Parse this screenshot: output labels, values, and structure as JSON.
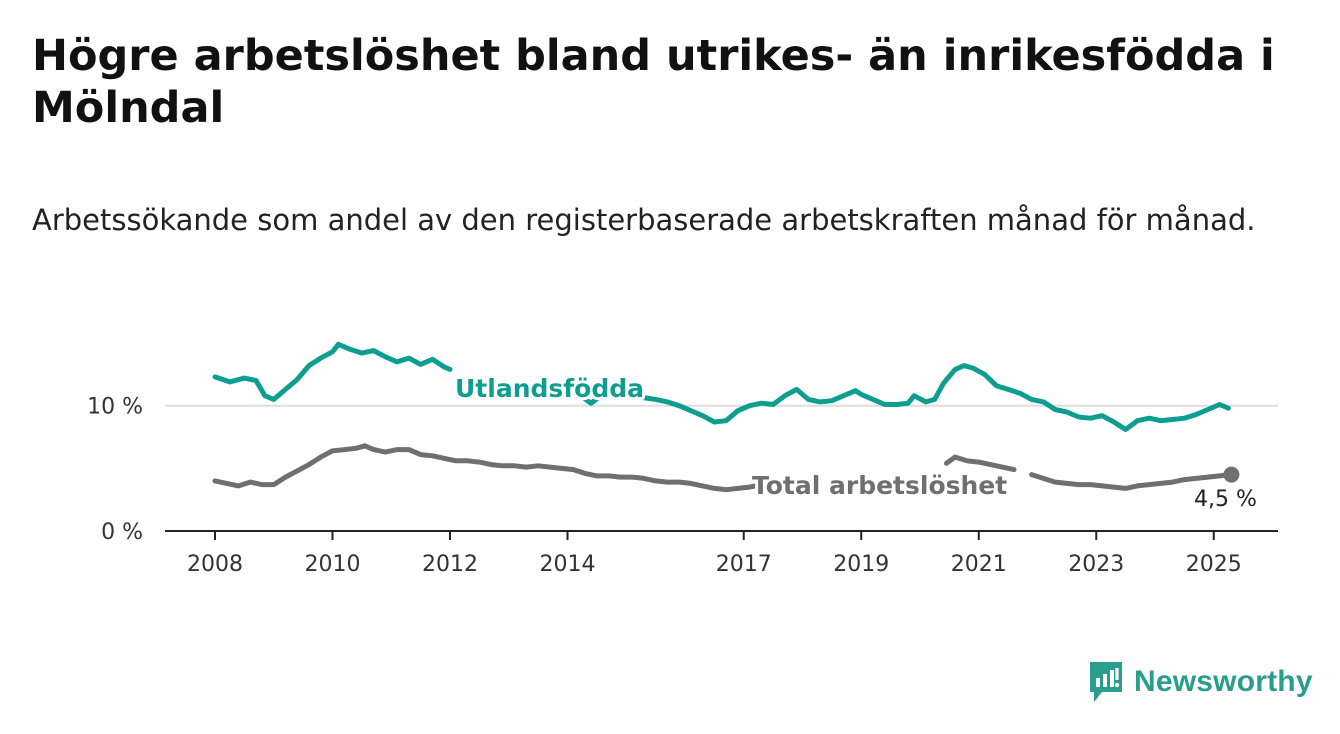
{
  "header": {
    "title": "Högre arbetslöshet bland utrikes- än inrikesfödda i Mölndal",
    "subtitle": "Arbetssökande som andel av den registerbaserade arbetskraften månad för månad."
  },
  "brand": {
    "name": "Newsworthy",
    "icon": "newsworthy-logo-icon",
    "color": "#2a9d8f"
  },
  "chart_data": {
    "type": "line",
    "x_unit": "year",
    "xlim": [
      2007.2,
      2026.1
    ],
    "ylim": [
      0,
      17
    ],
    "y_ticks": [
      {
        "value": 0,
        "label": "0 %"
      },
      {
        "value": 10,
        "label": "10 %"
      }
    ],
    "x_ticks": [
      {
        "value": 2008,
        "label": "2008"
      },
      {
        "value": 2010,
        "label": "2010"
      },
      {
        "value": 2012,
        "label": "2012"
      },
      {
        "value": 2014,
        "label": "2014"
      },
      {
        "value": 2017,
        "label": "2017"
      },
      {
        "value": 2019,
        "label": "2019"
      },
      {
        "value": 2021,
        "label": "2021"
      },
      {
        "value": 2023,
        "label": "2023"
      },
      {
        "value": 2025,
        "label": "2025"
      }
    ],
    "grid": "horizontal at 10 %",
    "series": [
      {
        "name": "Utlandsfödda",
        "color": "#0d9e91",
        "points": [
          [
            2008.0,
            12.3
          ],
          [
            2008.25,
            11.9
          ],
          [
            2008.5,
            12.2
          ],
          [
            2008.7,
            12.0
          ],
          [
            2008.85,
            10.8
          ],
          [
            2009.0,
            10.5
          ],
          [
            2009.2,
            11.3
          ],
          [
            2009.4,
            12.1
          ],
          [
            2009.6,
            13.2
          ],
          [
            2009.8,
            13.8
          ],
          [
            2010.0,
            14.3
          ],
          [
            2010.1,
            14.9
          ],
          [
            2010.3,
            14.5
          ],
          [
            2010.5,
            14.2
          ],
          [
            2010.7,
            14.4
          ],
          [
            2010.9,
            13.9
          ],
          [
            2011.1,
            13.5
          ],
          [
            2011.3,
            13.8
          ],
          [
            2011.5,
            13.3
          ],
          [
            2011.7,
            13.7
          ],
          [
            2011.9,
            13.1
          ],
          [
            2012.0,
            12.9
          ],
          [
            null,
            null
          ],
          [
            2014.25,
            10.7
          ],
          [
            2014.4,
            10.2
          ],
          [
            2014.55,
            10.7
          ],
          [
            null,
            null
          ],
          [
            2015.2,
            10.7
          ],
          [
            2015.5,
            10.5
          ],
          [
            2015.7,
            10.3
          ],
          [
            2015.9,
            10.0
          ],
          [
            2016.1,
            9.6
          ],
          [
            2016.3,
            9.2
          ],
          [
            2016.5,
            8.7
          ],
          [
            2016.7,
            8.8
          ],
          [
            2016.9,
            9.6
          ],
          [
            2017.1,
            10.0
          ],
          [
            2017.3,
            10.2
          ],
          [
            2017.5,
            10.1
          ],
          [
            2017.7,
            10.8
          ],
          [
            2017.9,
            11.3
          ],
          [
            2018.1,
            10.5
          ],
          [
            2018.3,
            10.3
          ],
          [
            2018.5,
            10.4
          ],
          [
            2018.7,
            10.8
          ],
          [
            2018.9,
            11.2
          ],
          [
            2019.0,
            10.9
          ],
          [
            2019.2,
            10.5
          ],
          [
            2019.4,
            10.1
          ],
          [
            2019.6,
            10.1
          ],
          [
            2019.8,
            10.2
          ],
          [
            2019.9,
            10.8
          ],
          [
            2020.1,
            10.3
          ],
          [
            2020.25,
            10.5
          ],
          [
            2020.4,
            11.8
          ],
          [
            2020.6,
            12.9
          ],
          [
            2020.75,
            13.2
          ],
          [
            2020.9,
            13.0
          ],
          [
            2021.1,
            12.5
          ],
          [
            2021.3,
            11.6
          ],
          [
            2021.5,
            11.3
          ],
          [
            2021.7,
            11.0
          ],
          [
            2021.9,
            10.5
          ],
          [
            2022.1,
            10.3
          ],
          [
            2022.3,
            9.7
          ],
          [
            2022.5,
            9.5
          ],
          [
            2022.7,
            9.1
          ],
          [
            2022.9,
            9.0
          ],
          [
            2023.1,
            9.2
          ],
          [
            2023.3,
            8.7
          ],
          [
            2023.5,
            8.1
          ],
          [
            2023.7,
            8.8
          ],
          [
            2023.9,
            9.0
          ],
          [
            2024.1,
            8.8
          ],
          [
            2024.3,
            8.9
          ],
          [
            2024.5,
            9.0
          ],
          [
            2024.7,
            9.3
          ],
          [
            2024.9,
            9.7
          ],
          [
            2025.1,
            10.1
          ],
          [
            2025.2,
            9.9
          ],
          [
            2025.25,
            9.8
          ]
        ]
      },
      {
        "name": "Total arbetslöshet",
        "color": "#6e6e73",
        "end_value_label": "4,5 %",
        "points": [
          [
            2008.0,
            4.0
          ],
          [
            2008.2,
            3.8
          ],
          [
            2008.4,
            3.6
          ],
          [
            2008.6,
            3.9
          ],
          [
            2008.8,
            3.7
          ],
          [
            2009.0,
            3.7
          ],
          [
            2009.2,
            4.3
          ],
          [
            2009.4,
            4.8
          ],
          [
            2009.6,
            5.3
          ],
          [
            2009.8,
            5.9
          ],
          [
            2010.0,
            6.4
          ],
          [
            2010.2,
            6.5
          ],
          [
            2010.4,
            6.6
          ],
          [
            2010.55,
            6.8
          ],
          [
            2010.7,
            6.5
          ],
          [
            2010.9,
            6.3
          ],
          [
            2011.1,
            6.5
          ],
          [
            2011.3,
            6.5
          ],
          [
            2011.5,
            6.1
          ],
          [
            2011.7,
            6.0
          ],
          [
            2011.9,
            5.8
          ],
          [
            2012.1,
            5.6
          ],
          [
            2012.3,
            5.6
          ],
          [
            2012.5,
            5.5
          ],
          [
            2012.7,
            5.3
          ],
          [
            2012.9,
            5.2
          ],
          [
            2013.1,
            5.2
          ],
          [
            2013.3,
            5.1
          ],
          [
            2013.5,
            5.2
          ],
          [
            2013.7,
            5.1
          ],
          [
            2013.9,
            5.0
          ],
          [
            2014.1,
            4.9
          ],
          [
            2014.3,
            4.6
          ],
          [
            2014.5,
            4.4
          ],
          [
            2014.7,
            4.4
          ],
          [
            2014.9,
            4.3
          ],
          [
            2015.1,
            4.3
          ],
          [
            2015.3,
            4.2
          ],
          [
            2015.5,
            4.0
          ],
          [
            2015.7,
            3.9
          ],
          [
            2015.9,
            3.9
          ],
          [
            2016.1,
            3.8
          ],
          [
            2016.3,
            3.6
          ],
          [
            2016.5,
            3.4
          ],
          [
            2016.7,
            3.3
          ],
          [
            2016.9,
            3.4
          ],
          [
            2017.1,
            3.5
          ],
          [
            2017.2,
            3.6
          ],
          [
            null,
            null
          ],
          [
            2020.45,
            5.4
          ],
          [
            2020.6,
            5.9
          ],
          [
            2020.8,
            5.6
          ],
          [
            2021.0,
            5.5
          ],
          [
            2021.2,
            5.3
          ],
          [
            2021.4,
            5.1
          ],
          [
            2021.6,
            4.9
          ],
          [
            null,
            null
          ],
          [
            2021.9,
            4.5
          ],
          [
            2022.1,
            4.2
          ],
          [
            2022.3,
            3.9
          ],
          [
            2022.5,
            3.8
          ],
          [
            2022.7,
            3.7
          ],
          [
            2022.9,
            3.7
          ],
          [
            2023.1,
            3.6
          ],
          [
            2023.3,
            3.5
          ],
          [
            2023.5,
            3.4
          ],
          [
            2023.7,
            3.6
          ],
          [
            2023.9,
            3.7
          ],
          [
            2024.1,
            3.8
          ],
          [
            2024.3,
            3.9
          ],
          [
            2024.5,
            4.1
          ],
          [
            2024.7,
            4.2
          ],
          [
            2024.9,
            4.3
          ],
          [
            2025.1,
            4.4
          ],
          [
            2025.25,
            4.5
          ]
        ]
      }
    ]
  }
}
